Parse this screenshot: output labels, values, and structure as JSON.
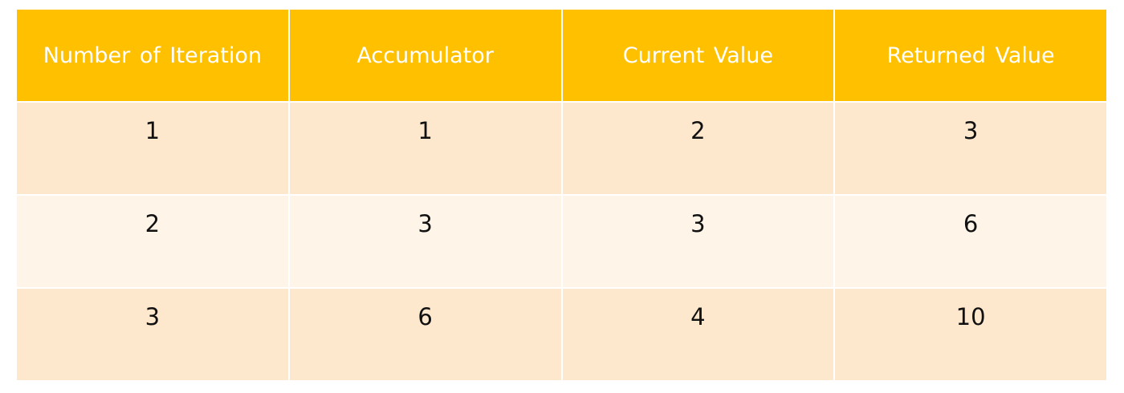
{
  "colors": {
    "header_bg": "#ffc000",
    "row_odd_bg": "#fde7cd",
    "row_even_bg": "#fef4e8",
    "border": "#ffffff",
    "header_text": "#ffffff",
    "cell_text": "#111111"
  },
  "chart_data": {
    "type": "table",
    "columns": [
      "Number of Iteration",
      "Accumulator",
      "Current Value",
      "Returned Value"
    ],
    "rows": [
      [
        "1",
        "1",
        "2",
        "3"
      ],
      [
        "2",
        "3",
        "3",
        "6"
      ],
      [
        "3",
        "6",
        "4",
        "10"
      ]
    ]
  }
}
